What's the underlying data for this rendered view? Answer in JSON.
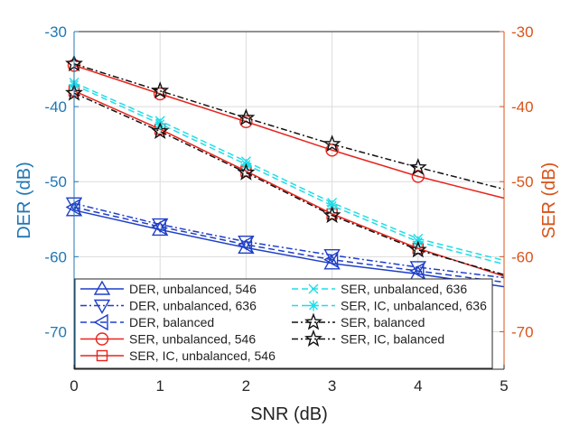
{
  "chart_data": {
    "type": "line",
    "xlabel": "SNR (dB)",
    "ylabel_left": "DER (dB)",
    "ylabel_right": "SER (dB)",
    "xlim": [
      0,
      5
    ],
    "ylim_left": [
      -75,
      -30
    ],
    "ylim_right": [
      -75,
      -30
    ],
    "x_ticks": [
      0,
      1,
      2,
      3,
      4,
      5
    ],
    "y_ticks_left": [
      -70,
      -60,
      -50,
      -40,
      -30
    ],
    "y_ticks_right": [
      -70,
      -60,
      -50,
      -40,
      -30
    ],
    "grid": true,
    "legend_position": "lower-left",
    "colors": {
      "blue": "#1f3fc8",
      "red": "#e8231b",
      "cyan": "#1fdde8",
      "black": "#111111",
      "left_axis": "#1f77b4",
      "right_axis": "#d95319"
    },
    "x": [
      0,
      1,
      2,
      3,
      4,
      5
    ],
    "series": [
      {
        "name": "DER, unbalanced, 546",
        "color": "blue",
        "dash": "solid",
        "marker": "triangle-up",
        "values": [
          -53.8,
          -56.4,
          -58.8,
          -60.9,
          -62.3,
          -64.0
        ]
      },
      {
        "name": "DER, unbalanced, 636",
        "color": "blue",
        "dash": "dashdot",
        "marker": "triangle-down",
        "values": [
          -52.9,
          -55.7,
          -58.0,
          -59.8,
          -61.4,
          -62.8
        ]
      },
      {
        "name": "DER, balanced",
        "color": "blue",
        "dash": "dashed",
        "marker": "triangle-left",
        "values": [
          -53.4,
          -56.0,
          -58.4,
          -60.4,
          -61.9,
          -63.4
        ]
      },
      {
        "name": "SER, unbalanced, 546",
        "color": "red",
        "dash": "solid",
        "marker": "circle",
        "values": [
          -34.5,
          -38.3,
          -42.0,
          -45.8,
          -49.3,
          -52.2
        ]
      },
      {
        "name": "SER, IC, unbalanced, 546",
        "color": "red",
        "dash": "solid",
        "marker": "square",
        "values": [
          -37.9,
          -43.0,
          -48.6,
          -54.3,
          -58.9,
          -62.6
        ]
      },
      {
        "name": "SER, unbalanced, 636",
        "color": "cyan",
        "dash": "dashed",
        "marker": "x",
        "values": [
          -36.8,
          -41.9,
          -47.3,
          -52.8,
          -57.6,
          -60.5
        ]
      },
      {
        "name": "SER, IC, unbalanced, 636",
        "color": "cyan",
        "dash": "dashed",
        "marker": "asterisk",
        "values": [
          -37.1,
          -42.3,
          -47.7,
          -53.2,
          -58.0,
          -61.0
        ]
      },
      {
        "name": "SER, balanced",
        "color": "black",
        "dash": "dashdot",
        "marker": "star",
        "values": [
          -34.3,
          -37.9,
          -41.5,
          -45.0,
          -48.1,
          -51.0
        ]
      },
      {
        "name": "SER, IC, balanced",
        "color": "black",
        "dash": "dashdot",
        "marker": "star",
        "values": [
          -38.2,
          -43.3,
          -48.8,
          -54.5,
          -59.1,
          -62.4
        ]
      }
    ]
  }
}
